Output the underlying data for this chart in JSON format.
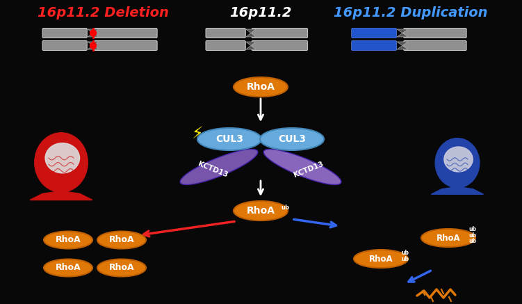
{
  "bg_color": "#080808",
  "title_deletion": "16p11.2 Deletion",
  "title_normal": "16p11.2",
  "title_duplication": "16p11.2 Duplication",
  "title_deletion_color": "#ff2020",
  "title_normal_color": "#ffffff",
  "title_duplication_color": "#4499ff",
  "figsize": [
    7.51,
    4.37
  ],
  "dpi": 100,
  "rhoa_fc": "#e07808",
  "rhoa_ec": "#c06000",
  "cul3_fc": "#66aadd",
  "cul3_ec": "#4488bb",
  "kctd_fc": "#7755aa",
  "kctd_ec": "#5533aa",
  "arrow_color": "#ffffff",
  "red_arrow": "#ee2222",
  "blue_arrow": "#3366ee",
  "lightning_color": "#ffee00"
}
